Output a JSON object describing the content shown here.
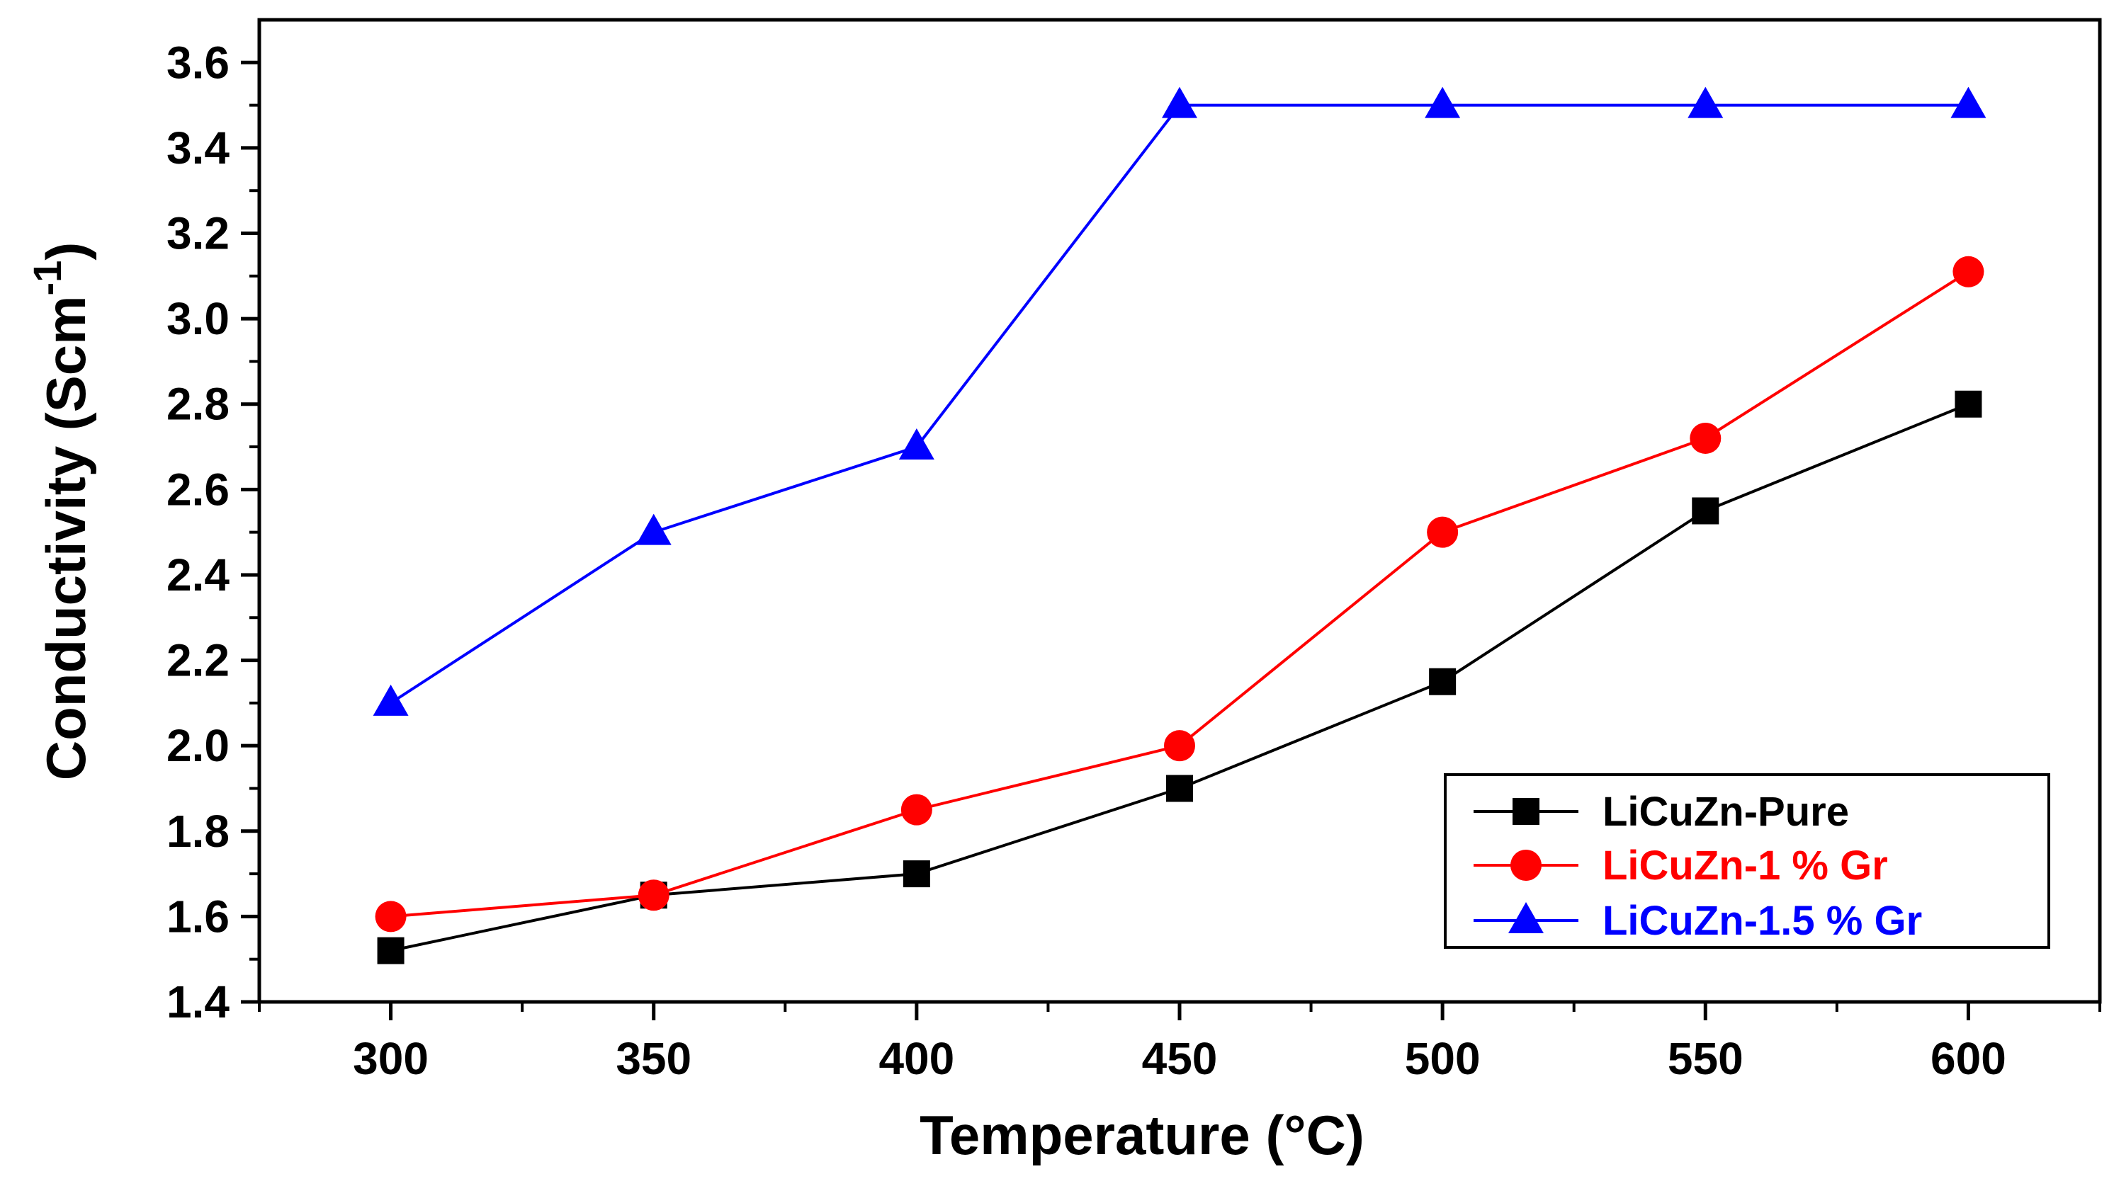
{
  "chart_data": {
    "type": "line",
    "title": "",
    "xlabel": "Temperature (°C)",
    "ylabel_main": "Conductivity (Scm",
    "ylabel_sup": "-1",
    "ylabel_close": ")",
    "x": [
      300,
      350,
      400,
      450,
      500,
      550,
      600
    ],
    "xlim": [
      275,
      625
    ],
    "ylim": [
      1.4,
      3.7
    ],
    "xticks": [
      "300",
      "350",
      "400",
      "450",
      "500",
      "550",
      "600"
    ],
    "yticks": [
      "1.4",
      "1.6",
      "1.8",
      "2.0",
      "2.2",
      "2.4",
      "2.6",
      "2.8",
      "3.0",
      "3.2",
      "3.4",
      "3.6"
    ],
    "legend_position": "bottom-right",
    "series": [
      {
        "name": "LiCuZn-Pure",
        "color": "#000000",
        "marker": "square",
        "values": [
          1.52,
          1.65,
          1.7,
          1.9,
          2.15,
          2.55,
          2.8
        ]
      },
      {
        "name": "LiCuZn-1 % Gr",
        "color": "#ff0000",
        "marker": "circle",
        "values": [
          1.6,
          1.65,
          1.85,
          2.0,
          2.5,
          2.72,
          3.11
        ]
      },
      {
        "name": "LiCuZn-1.5 % Gr",
        "color": "#0000ff",
        "marker": "triangle",
        "values": [
          2.1,
          2.5,
          2.7,
          3.5,
          3.5,
          3.5,
          3.5
        ]
      }
    ]
  }
}
